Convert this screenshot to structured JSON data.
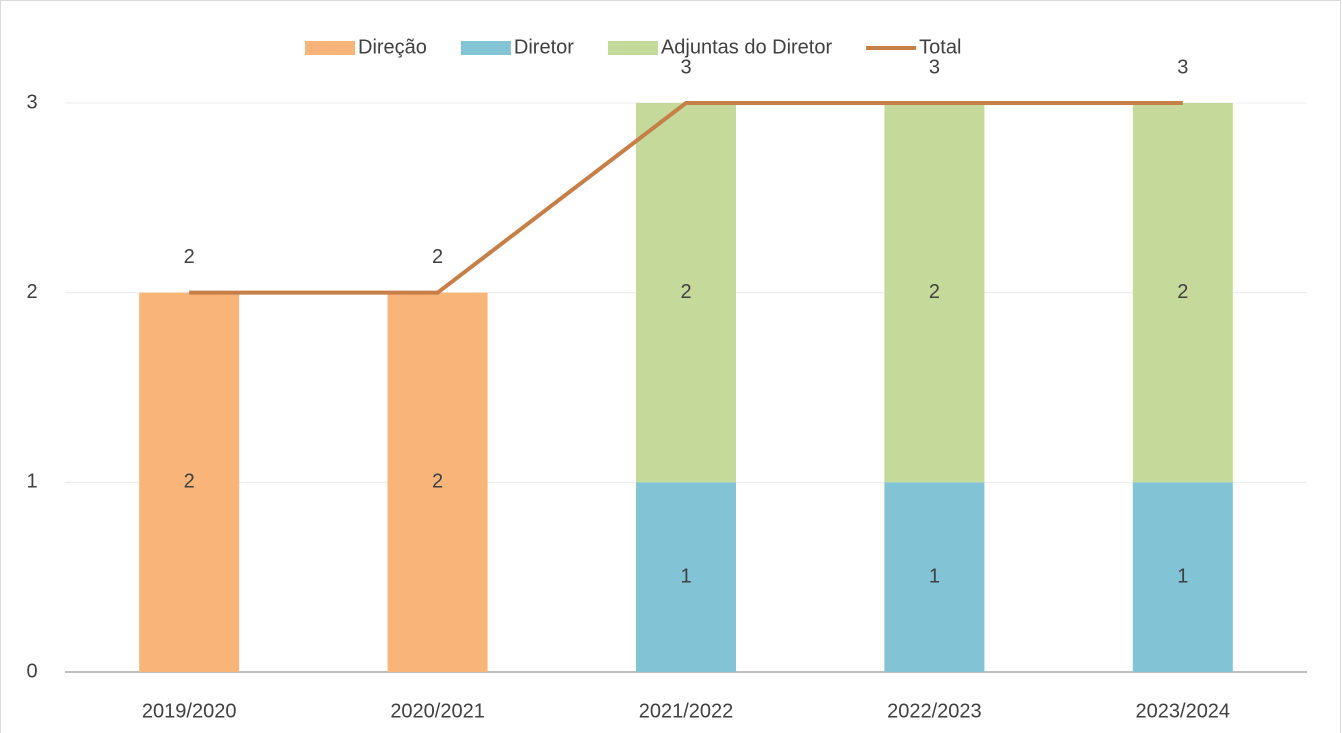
{
  "chart_data": {
    "type": "bar",
    "stacked": true,
    "categories": [
      "2019/2020",
      "2020/2021",
      "2021/2022",
      "2022/2023",
      "2023/2024"
    ],
    "series": [
      {
        "name": "Direção",
        "color": "#f9b47a",
        "values": [
          2,
          2,
          null,
          null,
          null
        ]
      },
      {
        "name": "Diretor",
        "color": "#82c4d6",
        "values": [
          null,
          null,
          1,
          1,
          1
        ]
      },
      {
        "name": "Adjuntas do Diretor",
        "color": "#c5d99a",
        "values": [
          null,
          null,
          2,
          2,
          2
        ]
      },
      {
        "name": "Total",
        "type": "line",
        "color": "#c57f47",
        "values": [
          2,
          2,
          3,
          3,
          3
        ]
      }
    ],
    "ylim": [
      0,
      3
    ],
    "yticks": [
      0,
      1,
      2,
      3
    ],
    "grid": true,
    "legend": "top"
  }
}
